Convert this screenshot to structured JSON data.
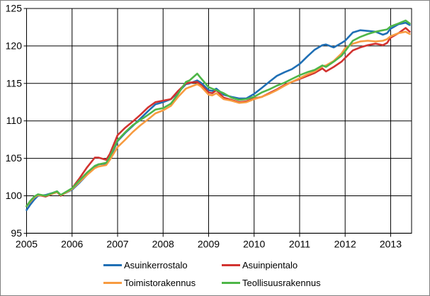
{
  "chart_data": {
    "type": "line",
    "grid": true,
    "legend_position": "bottom",
    "ylim": [
      95,
      125
    ],
    "xlim": [
      2005.0,
      2013.46
    ],
    "y_ticks": [
      95,
      100,
      105,
      110,
      115,
      120,
      125
    ],
    "x_tick_labels": [
      "2005",
      "2006",
      "2007",
      "2008",
      "2009",
      "2010",
      "2011",
      "2012",
      "2013"
    ],
    "x_tick_years": [
      2005,
      2006,
      2007,
      2008,
      2009,
      2010,
      2011,
      2012,
      2013
    ],
    "x": [
      2005.0,
      2005.08,
      2005.17,
      2005.25,
      2005.42,
      2005.58,
      2005.67,
      2005.75,
      2005.83,
      2006.0,
      2006.17,
      2006.33,
      2006.5,
      2006.58,
      2006.75,
      2006.83,
      2007.0,
      2007.17,
      2007.33,
      2007.5,
      2007.67,
      2007.83,
      2008.0,
      2008.17,
      2008.33,
      2008.5,
      2008.58,
      2008.75,
      2008.83,
      2009.0,
      2009.08,
      2009.17,
      2009.33,
      2009.5,
      2009.67,
      2009.83,
      2010.0,
      2010.17,
      2010.33,
      2010.5,
      2010.67,
      2010.83,
      2011.0,
      2011.17,
      2011.33,
      2011.5,
      2011.58,
      2011.75,
      2011.92,
      2012.0,
      2012.17,
      2012.33,
      2012.5,
      2012.67,
      2012.83,
      2012.92,
      2013.0,
      2013.17,
      2013.33,
      2013.42
    ],
    "series": [
      {
        "name": "Asuinkerrostalo",
        "color": "#1F6FB5",
        "values": [
          98.1,
          98.8,
          99.5,
          100.0,
          100.1,
          100.4,
          100.6,
          100.1,
          100.3,
          100.8,
          101.8,
          102.8,
          103.9,
          104.2,
          104.3,
          105.0,
          107.3,
          108.4,
          109.3,
          110.3,
          111.3,
          112.2,
          112.5,
          112.9,
          113.8,
          114.9,
          115.0,
          115.4,
          115.1,
          114.1,
          114.0,
          114.3,
          113.5,
          113.2,
          113.0,
          113.0,
          113.6,
          114.4,
          115.2,
          116.0,
          116.5,
          116.9,
          117.6,
          118.6,
          119.5,
          120.1,
          120.2,
          119.8,
          120.4,
          120.7,
          121.8,
          122.1,
          122.0,
          121.9,
          121.5,
          121.7,
          122.3,
          122.9,
          123.1,
          122.8
        ]
      },
      {
        "name": "Asuinpientalo",
        "color": "#D23330",
        "values": [
          98.6,
          99.2,
          99.8,
          100.1,
          99.9,
          100.3,
          100.5,
          100.0,
          100.3,
          101.0,
          102.4,
          103.8,
          105.1,
          105.1,
          104.8,
          105.6,
          108.1,
          109.1,
          109.9,
          110.8,
          111.8,
          112.5,
          112.7,
          112.9,
          114.0,
          115.0,
          115.1,
          115.2,
          114.8,
          113.8,
          113.7,
          114.1,
          113.1,
          112.8,
          112.5,
          112.6,
          113.0,
          113.2,
          113.7,
          114.2,
          114.8,
          115.2,
          115.6,
          116.0,
          116.4,
          117.0,
          116.6,
          117.2,
          117.9,
          118.4,
          119.4,
          119.8,
          120.1,
          120.3,
          120.1,
          120.4,
          121.1,
          121.7,
          122.4,
          121.9
        ]
      },
      {
        "name": "Toimistorakennus",
        "color": "#F79B40",
        "values": [
          98.6,
          99.2,
          99.8,
          100.1,
          100.0,
          100.3,
          100.5,
          100.1,
          100.3,
          100.9,
          101.9,
          102.8,
          103.7,
          103.9,
          104.1,
          104.8,
          106.5,
          107.5,
          108.5,
          109.4,
          110.2,
          111.0,
          111.4,
          112.0,
          113.2,
          114.3,
          114.5,
          114.9,
          114.6,
          113.5,
          113.4,
          113.7,
          112.9,
          112.7,
          112.4,
          112.5,
          112.9,
          113.2,
          113.6,
          114.1,
          114.7,
          115.2,
          115.7,
          116.2,
          116.6,
          117.3,
          117.4,
          118.0,
          119.0,
          119.7,
          120.3,
          120.6,
          120.7,
          120.6,
          120.7,
          120.9,
          121.3,
          121.7,
          121.9,
          121.6
        ]
      },
      {
        "name": "Teollisuusrakennus",
        "color": "#4EB648",
        "values": [
          98.6,
          99.3,
          99.9,
          100.2,
          100.0,
          100.4,
          100.6,
          100.1,
          100.4,
          101.0,
          102.1,
          103.1,
          104.0,
          104.2,
          104.4,
          105.2,
          107.4,
          108.5,
          109.4,
          110.1,
          110.8,
          111.5,
          111.7,
          112.3,
          113.6,
          115.2,
          115.4,
          116.3,
          115.7,
          114.5,
          114.3,
          114.1,
          113.7,
          113.1,
          112.8,
          112.9,
          113.2,
          113.8,
          114.2,
          114.7,
          115.1,
          115.6,
          116.1,
          116.5,
          116.8,
          117.4,
          117.2,
          117.9,
          118.7,
          119.3,
          120.7,
          121.2,
          121.6,
          121.9,
          122.1,
          122.2,
          122.6,
          123.0,
          123.4,
          123.0
        ]
      }
    ]
  }
}
